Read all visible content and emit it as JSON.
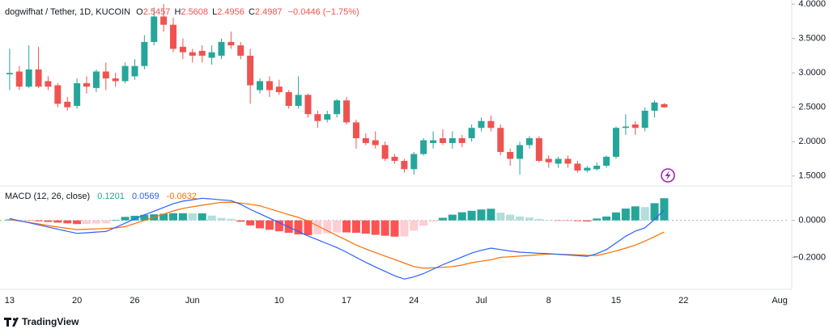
{
  "chart_data": [
    {
      "type": "candlestick",
      "title": "dogwifhat / Tether, 1D, KUCOIN",
      "ohlc_labels": [
        "O",
        "H",
        "L",
        "C"
      ],
      "change_label": "−0.0446 (−1.75%)",
      "categories": [
        "May 13",
        "May 14",
        "May 15",
        "May 16",
        "May 17",
        "May 18",
        "May 19",
        "May 20",
        "May 21",
        "May 22",
        "May 23",
        "May 24",
        "May 25",
        "May 26",
        "May 27",
        "May 28",
        "May 29",
        "May 30",
        "May 31",
        "Jun 1",
        "Jun 2",
        "Jun 3",
        "Jun 4",
        "Jun 5",
        "Jun 6",
        "Jun 7",
        "Jun 8",
        "Jun 9",
        "Jun 10",
        "Jun 11",
        "Jun 12",
        "Jun 13",
        "Jun 14",
        "Jun 15",
        "Jun 16",
        "Jun 17",
        "Jun 18",
        "Jun 19",
        "Jun 20",
        "Jun 21",
        "Jun 22",
        "Jun 23",
        "Jun 24",
        "Jun 25",
        "Jun 26",
        "Jun 27",
        "Jun 28",
        "Jun 29",
        "Jun 30",
        "Jul 1",
        "Jul 2",
        "Jul 3",
        "Jul 4",
        "Jul 5",
        "Jul 6",
        "Jul 7",
        "Jul 8",
        "Jul 9",
        "Jul 10",
        "Jul 11",
        "Jul 12",
        "Jul 13",
        "Jul 14",
        "Jul 15",
        "Jul 16",
        "Jul 17",
        "Jul 18",
        "Jul 19",
        "Jul 20"
      ],
      "open": [
        2.98,
        3.02,
        2.8,
        3.05,
        2.88,
        2.82,
        2.58,
        2.52,
        2.85,
        2.78,
        3.02,
        2.92,
        2.88,
        2.95,
        3.1,
        3.45,
        3.82,
        3.7,
        3.38,
        3.3,
        3.32,
        3.22,
        3.25,
        3.45,
        3.4,
        3.25,
        2.75,
        2.88,
        2.8,
        2.72,
        2.52,
        2.68,
        2.4,
        2.32,
        2.4,
        2.6,
        2.28,
        2.05,
        2.02,
        1.95,
        1.78,
        1.72,
        1.6,
        1.82,
        1.98,
        2.05,
        1.98,
        2.05,
        2.05,
        2.2,
        2.3,
        2.2,
        1.85,
        1.75,
        1.95,
        2.05,
        1.75,
        1.68,
        1.75,
        1.68,
        1.58,
        1.6,
        1.65,
        1.78,
        2.2,
        2.25,
        2.2,
        2.45,
        2.5457
      ],
      "high": [
        3.35,
        3.1,
        3.4,
        3.38,
        2.95,
        2.85,
        2.65,
        2.92,
        2.95,
        3.05,
        3.15,
        3.0,
        3.15,
        3.2,
        3.55,
        3.95,
        4.0,
        3.8,
        3.5,
        3.35,
        3.4,
        3.4,
        3.5,
        3.6,
        3.45,
        3.35,
        2.92,
        2.95,
        2.9,
        2.75,
        2.95,
        2.7,
        2.45,
        2.45,
        2.62,
        2.65,
        2.32,
        2.12,
        2.15,
        2.0,
        1.82,
        1.75,
        1.85,
        2.05,
        2.15,
        2.18,
        2.15,
        2.1,
        2.25,
        2.35,
        2.38,
        2.25,
        1.9,
        2.0,
        2.08,
        2.08,
        1.8,
        1.78,
        1.8,
        1.72,
        1.65,
        1.7,
        1.8,
        2.22,
        2.4,
        2.3,
        2.5,
        2.6,
        2.5608
      ],
      "low": [
        2.75,
        2.75,
        2.78,
        2.78,
        2.75,
        2.5,
        2.45,
        2.48,
        2.7,
        2.72,
        2.75,
        2.8,
        2.85,
        2.9,
        3.05,
        3.4,
        3.6,
        3.3,
        3.2,
        3.15,
        3.15,
        3.12,
        3.2,
        3.35,
        3.2,
        2.55,
        2.7,
        2.65,
        2.68,
        2.48,
        2.48,
        2.35,
        2.2,
        2.28,
        2.35,
        2.25,
        1.9,
        1.95,
        1.9,
        1.72,
        1.68,
        1.55,
        1.52,
        1.8,
        1.9,
        1.95,
        1.9,
        1.92,
        2.0,
        2.15,
        2.15,
        1.8,
        1.65,
        1.52,
        1.9,
        1.7,
        1.62,
        1.62,
        1.62,
        1.55,
        1.55,
        1.58,
        1.62,
        1.75,
        2.1,
        2.1,
        2.15,
        2.35,
        2.4956
      ],
      "close": [
        3.0,
        2.8,
        3.05,
        2.8,
        2.8,
        2.55,
        2.5,
        2.85,
        2.8,
        3.02,
        2.92,
        2.88,
        3.1,
        3.1,
        3.45,
        3.82,
        3.7,
        3.35,
        3.3,
        3.25,
        3.25,
        3.3,
        3.45,
        3.4,
        3.25,
        2.82,
        2.88,
        2.75,
        2.72,
        2.52,
        2.68,
        2.4,
        2.3,
        2.4,
        2.6,
        2.28,
        2.05,
        1.98,
        1.95,
        1.75,
        1.72,
        1.6,
        1.82,
        2.02,
        2.02,
        1.98,
        2.05,
        1.98,
        2.2,
        2.3,
        2.2,
        1.85,
        1.75,
        1.95,
        2.05,
        1.72,
        1.7,
        1.75,
        1.68,
        1.58,
        1.62,
        1.65,
        1.78,
        2.2,
        2.22,
        2.2,
        2.45,
        2.57,
        2.4987
      ],
      "up_color": "#26a69a",
      "down_color": "#ef5350",
      "xlim": [
        "May 12",
        "Aug 2"
      ],
      "xticks": [
        {
          "value": "May 13",
          "label": "13"
        },
        {
          "value": "May 20",
          "label": "20"
        },
        {
          "value": "May 26",
          "label": "26"
        },
        {
          "value": "Jun 1",
          "label": "Jun"
        },
        {
          "value": "Jun 10",
          "label": "10"
        },
        {
          "value": "Jun 17",
          "label": "17"
        },
        {
          "value": "Jun 24",
          "label": "24"
        },
        {
          "value": "Jul 1",
          "label": "Jul"
        },
        {
          "value": "Jul 8",
          "label": "8"
        },
        {
          "value": "Jul 15",
          "label": "15"
        },
        {
          "value": "Jul 22",
          "label": "22"
        },
        {
          "value": "Aug 1",
          "label": "Aug"
        }
      ],
      "ylim": [
        1.38,
        4.06
      ],
      "yticks": [
        {
          "value": 1.5,
          "label": "1.5000"
        },
        {
          "value": 2,
          "label": "2.0000"
        },
        {
          "value": 2.5,
          "label": "2.5000"
        },
        {
          "value": 3,
          "label": "3.0000"
        },
        {
          "value": 3.5,
          "label": "3.5000"
        },
        {
          "value": 4,
          "label": "4.0000"
        }
      ],
      "grid": false
    },
    {
      "type": "macd",
      "title": "MACD (12, 26, close)",
      "histogram": {
        "colors": {
          "pos_up": "#26a69a",
          "pos_down": "#b2dfdb",
          "neg_down": "#ff5252",
          "neg_up": "#ffcdd2"
        },
        "values": [
          0.005,
          0.001,
          -0.002,
          -0.005,
          -0.008,
          -0.012,
          -0.016,
          -0.02,
          -0.019,
          -0.017,
          -0.016,
          0.003,
          0.019,
          0.025,
          0.03,
          0.033,
          0.036,
          0.039,
          0.039,
          0.038,
          0.038,
          0.026,
          0.013,
          0.008,
          -0.007,
          -0.027,
          -0.043,
          -0.051,
          -0.059,
          -0.067,
          -0.076,
          -0.08,
          -0.075,
          -0.07,
          -0.065,
          -0.065,
          -0.067,
          -0.072,
          -0.078,
          -0.083,
          -0.088,
          -0.087,
          -0.056,
          -0.029,
          -0.007,
          0.014,
          0.031,
          0.044,
          0.052,
          0.059,
          0.063,
          0.042,
          0.031,
          0.021,
          0.015,
          0.008,
          0.002,
          -0.001,
          -0.002,
          -0.004,
          -0.006,
          0.01,
          0.021,
          0.043,
          0.064,
          0.076,
          0.072,
          0.093,
          0.1201
        ]
      },
      "macd": {
        "color": "#2962ff",
        "values": [
          0.01,
          -0.002,
          -0.013,
          -0.024,
          -0.036,
          -0.048,
          -0.059,
          -0.07,
          -0.067,
          -0.063,
          -0.06,
          -0.038,
          -0.015,
          0.008,
          0.03,
          0.05,
          0.07,
          0.09,
          0.104,
          0.112,
          0.12,
          0.116,
          0.111,
          0.107,
          0.087,
          0.06,
          0.036,
          0.012,
          -0.012,
          -0.036,
          -0.06,
          -0.084,
          -0.105,
          -0.126,
          -0.147,
          -0.172,
          -0.2,
          -0.227,
          -0.252,
          -0.276,
          -0.3,
          -0.318,
          -0.306,
          -0.288,
          -0.264,
          -0.24,
          -0.219,
          -0.198,
          -0.177,
          -0.162,
          -0.15,
          -0.158,
          -0.166,
          -0.172,
          -0.175,
          -0.178,
          -0.18,
          -0.184,
          -0.187,
          -0.191,
          -0.195,
          -0.18,
          -0.158,
          -0.122,
          -0.086,
          -0.058,
          -0.04,
          0.005,
          0.0569
        ]
      },
      "signal": {
        "color": "#ff6d00",
        "values": [
          0.005,
          -0.003,
          -0.011,
          -0.019,
          -0.028,
          -0.036,
          -0.043,
          -0.05,
          -0.048,
          -0.046,
          -0.044,
          -0.041,
          -0.034,
          -0.017,
          0.0,
          0.017,
          0.034,
          0.051,
          0.065,
          0.074,
          0.082,
          0.09,
          0.098,
          0.099,
          0.094,
          0.087,
          0.079,
          0.063,
          0.047,
          0.031,
          0.016,
          -0.004,
          -0.03,
          -0.056,
          -0.082,
          -0.107,
          -0.133,
          -0.155,
          -0.174,
          -0.193,
          -0.212,
          -0.231,
          -0.25,
          -0.259,
          -0.257,
          -0.254,
          -0.25,
          -0.242,
          -0.229,
          -0.221,
          -0.213,
          -0.2,
          -0.197,
          -0.193,
          -0.19,
          -0.186,
          -0.182,
          -0.183,
          -0.185,
          -0.187,
          -0.189,
          -0.19,
          -0.179,
          -0.165,
          -0.15,
          -0.134,
          -0.112,
          -0.088,
          -0.0632
        ]
      },
      "ylim": [
        -0.369,
        0.178
      ],
      "yticks": [
        {
          "value": 0,
          "label": "0.0000"
        },
        {
          "value": -0.2,
          "label": "−0.2000"
        }
      ],
      "zero_line": true
    }
  ],
  "footer": {
    "brand": "TradingView"
  }
}
